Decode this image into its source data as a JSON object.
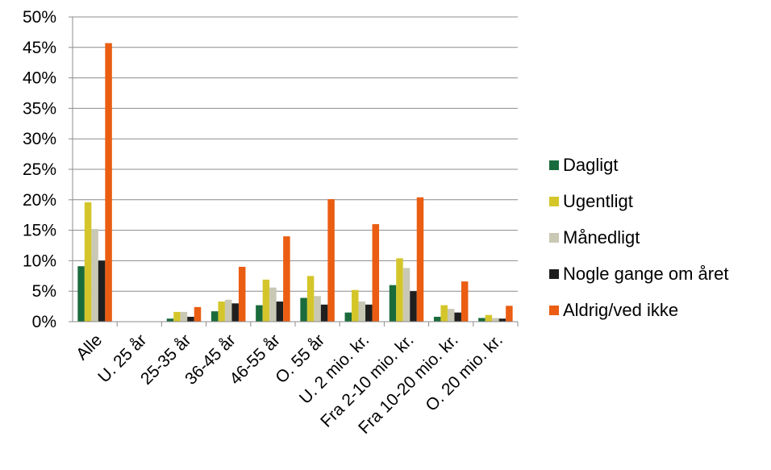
{
  "chart_data": {
    "type": "bar",
    "categories": [
      "Alle",
      "U. 25 år",
      "25-35 år",
      "36-45 år",
      "46-55 år",
      "O. 55 år",
      "U. 2 mio. kr.",
      "Fra 2-10 mio. kr.",
      "Fra 10-20 mio. kr.",
      "O. 20 mio. kr."
    ],
    "series": [
      {
        "name": "Dagligt",
        "color": "#1a6b3c",
        "values": [
          9.1,
          0,
          0.5,
          1.7,
          2.7,
          3.9,
          1.5,
          6.0,
          0.8,
          0.6
        ]
      },
      {
        "name": "Ugentligt",
        "color": "#d4c62a",
        "values": [
          19.6,
          0,
          1.6,
          3.3,
          6.9,
          7.5,
          5.2,
          10.4,
          2.7,
          1.1
        ]
      },
      {
        "name": "Månedligt",
        "color": "#c9c8b5",
        "values": [
          15.2,
          0,
          1.6,
          3.6,
          5.6,
          4.2,
          3.3,
          8.8,
          2.1,
          0.6
        ]
      },
      {
        "name": "Nogle gange om året",
        "color": "#1f1f1f",
        "values": [
          10.0,
          0,
          0.8,
          3.0,
          3.3,
          2.8,
          2.8,
          5.0,
          1.5,
          0.5
        ]
      },
      {
        "name": "Aldrig/ved ikke",
        "color": "#ea5d12",
        "values": [
          45.7,
          0,
          2.4,
          9.0,
          14.0,
          20.1,
          16.0,
          20.4,
          6.6,
          2.6
        ]
      }
    ],
    "yticks": [
      "0%",
      "5%",
      "10%",
      "15%",
      "20%",
      "25%",
      "30%",
      "35%",
      "40%",
      "45%",
      "50%"
    ],
    "ylim": [
      0,
      50
    ],
    "title": "",
    "xlabel": "",
    "ylabel": "",
    "grid": true,
    "legend_position": "right"
  }
}
